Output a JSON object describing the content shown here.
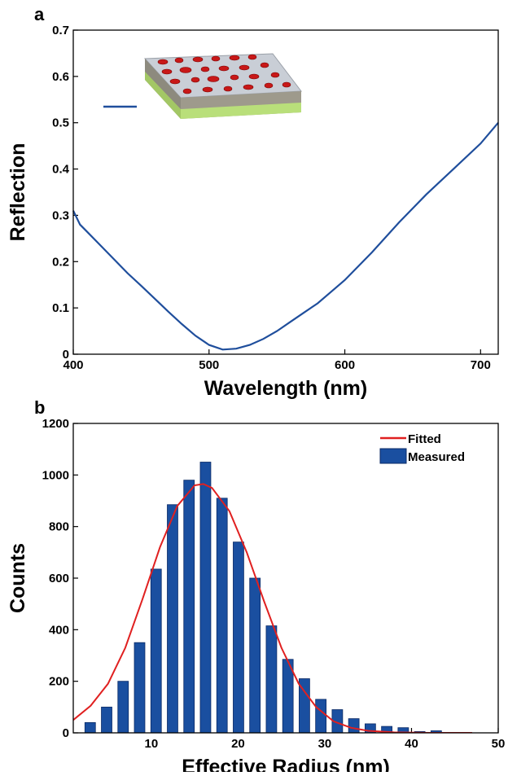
{
  "chart_data": [
    {
      "type": "line",
      "panel_label": "a",
      "xlabel": "Wavelength (nm)",
      "ylabel": "Reflection",
      "x": [
        400,
        405,
        410,
        420,
        430,
        440,
        450,
        460,
        470,
        480,
        490,
        500,
        510,
        520,
        530,
        540,
        550,
        560,
        570,
        580,
        590,
        600,
        620,
        640,
        660,
        680,
        700,
        713
      ],
      "series": [
        {
          "color": "#1f4e9c",
          "values": [
            0.31,
            0.28,
            0.265,
            0.235,
            0.205,
            0.175,
            0.148,
            0.12,
            0.092,
            0.065,
            0.04,
            0.02,
            0.01,
            0.012,
            0.02,
            0.033,
            0.05,
            0.07,
            0.09,
            0.11,
            0.135,
            0.16,
            0.22,
            0.285,
            0.345,
            0.4,
            0.455,
            0.5
          ]
        }
      ],
      "xlim": [
        400,
        713
      ],
      "xticks": [
        400,
        500,
        600,
        700
      ],
      "ylim": [
        0,
        0.7
      ],
      "yticks": [
        0,
        0.1,
        0.2,
        0.3,
        0.4,
        0.5,
        0.6,
        0.7
      ],
      "grid": false
    },
    {
      "type": "histogram",
      "panel_label": "b",
      "xlabel": "Effective Radius (nm)",
      "ylabel": "Counts",
      "series": [
        {
          "name": "Fitted",
          "type": "line",
          "color": "#e02020",
          "x": [
            1,
            3,
            5,
            7,
            9,
            11,
            13,
            15,
            16,
            17,
            19,
            21,
            23,
            25,
            27,
            29,
            31,
            33,
            35,
            38,
            42,
            47
          ],
          "values": [
            50,
            105,
            190,
            330,
            520,
            720,
            880,
            960,
            965,
            950,
            860,
            700,
            510,
            330,
            190,
            100,
            45,
            20,
            8,
            2,
            0,
            0
          ]
        },
        {
          "name": "Measured",
          "type": "bars",
          "color": "#1a4fa0",
          "bins": [
            2.0,
            3.9,
            5.8,
            7.7,
            9.6,
            11.5,
            13.4,
            15.3,
            17.2,
            19.1,
            21.0,
            22.9,
            24.8,
            26.7,
            28.6,
            30.5,
            32.4,
            34.3,
            36.2,
            38.1,
            40.0,
            41.9,
            43.8
          ],
          "values": [
            40,
            100,
            200,
            350,
            635,
            885,
            980,
            1050,
            910,
            740,
            600,
            415,
            285,
            210,
            130,
            90,
            55,
            35,
            25,
            20,
            5,
            8
          ]
        }
      ],
      "xlim": [
        1,
        50
      ],
      "xticks": [
        10,
        20,
        30,
        40,
        50
      ],
      "ylim": [
        0,
        1200
      ],
      "yticks": [
        0,
        200,
        400,
        600,
        800,
        1000,
        1200
      ],
      "legend": "upper right",
      "grid": false
    }
  ]
}
